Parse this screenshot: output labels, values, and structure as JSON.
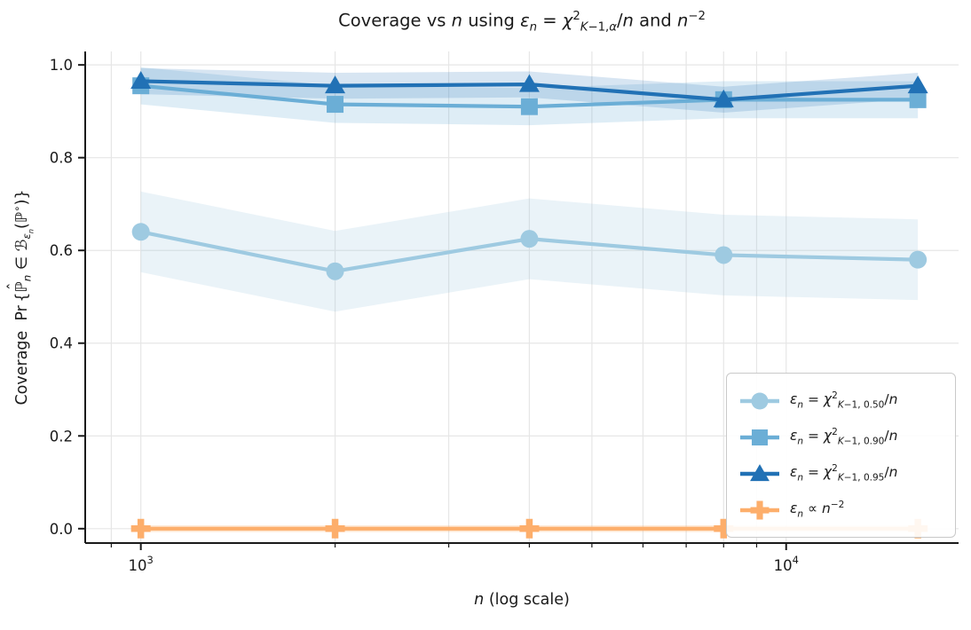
{
  "chart_data": {
    "type": "line",
    "title": "Coverage vs n using εn = χ²K−1,α/n and n⁻²",
    "title_html": "Coverage vs <i>n</i> using <i>ε</i><sub><i>n</i></sub> = <i>χ</i><sup>2</sup><sub><i>K</i>−1,<i>α</i></sub>/<i>n</i> and <i>n</i><sup>−2</sup>",
    "xlabel": "n (log scale)",
    "xlabel_html": "<i>n</i> (log scale)",
    "ylabel": "Coverage Pr{P̂n ∈ B_εn(P°)}",
    "ylabel_html": "Coverage&nbsp;&nbsp;Pr&#8201;{<span class='hatwrap'>ℙ<span class='hat'>ˆ</span></span><sub><i>n</i></sub> ∈ ℬ<sub><i>ε</i><sub><i>n</i></sub></sub>(ℙ<sup>∘</sup>)}",
    "x_scale": "log10",
    "xlim": [
      820,
      18500
    ],
    "ylim": [
      -0.031,
      1.029
    ],
    "grid": true,
    "legend_position": "lower right",
    "x": [
      1000,
      2000,
      4000,
      8000,
      16000
    ],
    "x_major_ticks": [
      {
        "value": 1000,
        "label": "10^3"
      },
      {
        "value": 10000,
        "label": "10^4"
      }
    ],
    "x_minor_ticks": [
      900,
      2000,
      3000,
      4000,
      5000,
      6000,
      7000,
      8000,
      9000
    ],
    "y_ticks": [
      {
        "value": 0.0,
        "label": "0.0"
      },
      {
        "value": 0.2,
        "label": "0.2"
      },
      {
        "value": 0.4,
        "label": "0.4"
      },
      {
        "value": 0.6,
        "label": "0.6"
      },
      {
        "value": 0.8,
        "label": "0.8"
      },
      {
        "value": 1.0,
        "label": "1.0"
      }
    ],
    "series": [
      {
        "name": "chi2-alpha-050",
        "label": "εn = χ²K−1, 0.50/n",
        "label_html": "<i>ε</i><sub><i>n</i></sub> = <i>χ</i><sup>2</sup><sub><i>K</i>−1, 0.50</sub>/<i>n</i>",
        "marker": "circle",
        "color": "#9ecae1",
        "values": [
          0.64,
          0.555,
          0.625,
          0.59,
          0.58
        ],
        "band_lo": [
          0.553,
          0.468,
          0.538,
          0.503,
          0.493
        ],
        "band_hi": [
          0.727,
          0.642,
          0.712,
          0.677,
          0.667
        ],
        "band_opacity": 0.22
      },
      {
        "name": "chi2-alpha-090",
        "label": "εn = χ²K−1, 0.90/n",
        "label_html": "<i>ε</i><sub><i>n</i></sub> = <i>χ</i><sup>2</sup><sub><i>K</i>−1, 0.90</sub>/<i>n</i>",
        "marker": "square",
        "color": "#6baed6",
        "values": [
          0.955,
          0.915,
          0.91,
          0.925,
          0.925
        ],
        "band_lo": [
          0.915,
          0.875,
          0.87,
          0.885,
          0.885
        ],
        "band_hi": [
          0.995,
          0.955,
          0.95,
          0.965,
          0.965
        ],
        "band_opacity": 0.22
      },
      {
        "name": "chi2-alpha-095",
        "label": "εn = χ²K−1, 0.95/n",
        "label_html": "<i>ε</i><sub><i>n</i></sub> = <i>χ</i><sup>2</sup><sub><i>K</i>−1, 0.95</sub>/<i>n</i>",
        "marker": "triangle",
        "color": "#2171b5",
        "values": [
          0.965,
          0.955,
          0.958,
          0.925,
          0.955
        ],
        "band_lo": [
          0.937,
          0.927,
          0.93,
          0.897,
          0.927
        ],
        "band_hi": [
          0.993,
          0.983,
          0.986,
          0.953,
          0.983
        ],
        "band_opacity": 0.18
      },
      {
        "name": "eps-n-minus-2",
        "label": "εn ∝ n⁻²",
        "label_html": "<i>ε</i><sub><i>n</i></sub> ∝ <i>n</i><sup>−2</sup>",
        "marker": "plus",
        "color": "#fdae6b",
        "values": [
          0.0,
          0.0,
          0.0,
          0.0,
          0.0
        ],
        "band_lo": [
          -0.007,
          -0.007,
          -0.007,
          -0.007,
          -0.007
        ],
        "band_hi": [
          0.007,
          0.007,
          0.007,
          0.007,
          0.007
        ],
        "band_opacity": 0.3
      }
    ],
    "colors": {
      "grid": "#e6e6e6",
      "spine": "#1a1a1a",
      "tick_label": "#1a1a1a",
      "legend_border": "#c9c9c9"
    }
  }
}
